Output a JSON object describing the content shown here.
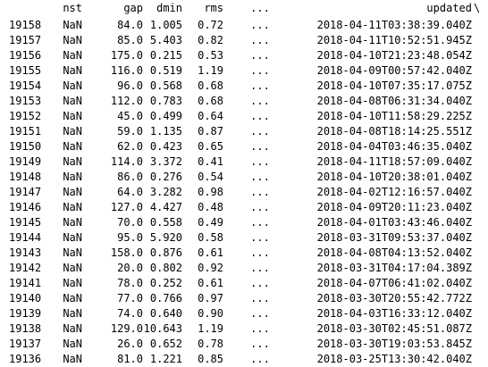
{
  "columns": {
    "nst": "nst",
    "gap": "gap",
    "dmin": "dmin",
    "rms": "rms",
    "ellipsis": "...",
    "updated": "updated",
    "continuation": "\\"
  },
  "rows": [
    {
      "index": "19158",
      "nst": "NaN",
      "gap": "84.0",
      "dmin": "1.005",
      "rms": "0.72",
      "ellipsis": "...",
      "updated": "2018-04-11T03:38:39.040Z"
    },
    {
      "index": "19157",
      "nst": "NaN",
      "gap": "85.0",
      "dmin": "5.403",
      "rms": "0.82",
      "ellipsis": "...",
      "updated": "2018-04-11T10:52:51.945Z"
    },
    {
      "index": "19156",
      "nst": "NaN",
      "gap": "175.0",
      "dmin": "0.215",
      "rms": "0.53",
      "ellipsis": "...",
      "updated": "2018-04-10T21:23:48.054Z"
    },
    {
      "index": "19155",
      "nst": "NaN",
      "gap": "116.0",
      "dmin": "0.519",
      "rms": "1.19",
      "ellipsis": "...",
      "updated": "2018-04-09T00:57:42.040Z"
    },
    {
      "index": "19154",
      "nst": "NaN",
      "gap": "96.0",
      "dmin": "0.568",
      "rms": "0.68",
      "ellipsis": "...",
      "updated": "2018-04-10T07:35:17.075Z"
    },
    {
      "index": "19153",
      "nst": "NaN",
      "gap": "112.0",
      "dmin": "0.783",
      "rms": "0.68",
      "ellipsis": "...",
      "updated": "2018-04-08T06:31:34.040Z"
    },
    {
      "index": "19152",
      "nst": "NaN",
      "gap": "45.0",
      "dmin": "0.499",
      "rms": "0.64",
      "ellipsis": "...",
      "updated": "2018-04-10T11:58:29.225Z"
    },
    {
      "index": "19151",
      "nst": "NaN",
      "gap": "59.0",
      "dmin": "1.135",
      "rms": "0.87",
      "ellipsis": "...",
      "updated": "2018-04-08T18:14:25.551Z"
    },
    {
      "index": "19150",
      "nst": "NaN",
      "gap": "62.0",
      "dmin": "0.423",
      "rms": "0.65",
      "ellipsis": "...",
      "updated": "2018-04-04T03:46:35.040Z"
    },
    {
      "index": "19149",
      "nst": "NaN",
      "gap": "114.0",
      "dmin": "3.372",
      "rms": "0.41",
      "ellipsis": "...",
      "updated": "2018-04-11T18:57:09.040Z"
    },
    {
      "index": "19148",
      "nst": "NaN",
      "gap": "86.0",
      "dmin": "0.276",
      "rms": "0.54",
      "ellipsis": "...",
      "updated": "2018-04-10T20:38:01.040Z"
    },
    {
      "index": "19147",
      "nst": "NaN",
      "gap": "64.0",
      "dmin": "3.282",
      "rms": "0.98",
      "ellipsis": "...",
      "updated": "2018-04-02T12:16:57.040Z"
    },
    {
      "index": "19146",
      "nst": "NaN",
      "gap": "127.0",
      "dmin": "4.427",
      "rms": "0.48",
      "ellipsis": "...",
      "updated": "2018-04-09T20:11:23.040Z"
    },
    {
      "index": "19145",
      "nst": "NaN",
      "gap": "70.0",
      "dmin": "0.558",
      "rms": "0.49",
      "ellipsis": "...",
      "updated": "2018-04-01T03:43:46.040Z"
    },
    {
      "index": "19144",
      "nst": "NaN",
      "gap": "95.0",
      "dmin": "5.920",
      "rms": "0.58",
      "ellipsis": "...",
      "updated": "2018-03-31T09:53:37.040Z"
    },
    {
      "index": "19143",
      "nst": "NaN",
      "gap": "158.0",
      "dmin": "0.876",
      "rms": "0.61",
      "ellipsis": "...",
      "updated": "2018-04-08T04:13:52.040Z"
    },
    {
      "index": "19142",
      "nst": "NaN",
      "gap": "20.0",
      "dmin": "0.802",
      "rms": "0.92",
      "ellipsis": "...",
      "updated": "2018-03-31T04:17:04.389Z"
    },
    {
      "index": "19141",
      "nst": "NaN",
      "gap": "78.0",
      "dmin": "0.252",
      "rms": "0.61",
      "ellipsis": "...",
      "updated": "2018-04-07T06:41:02.040Z"
    },
    {
      "index": "19140",
      "nst": "NaN",
      "gap": "77.0",
      "dmin": "0.766",
      "rms": "0.97",
      "ellipsis": "...",
      "updated": "2018-03-30T20:55:42.772Z"
    },
    {
      "index": "19139",
      "nst": "NaN",
      "gap": "74.0",
      "dmin": "0.640",
      "rms": "0.90",
      "ellipsis": "...",
      "updated": "2018-04-03T16:33:12.040Z"
    },
    {
      "index": "19138",
      "nst": "NaN",
      "gap": "129.0",
      "dmin": "10.643",
      "rms": "1.19",
      "ellipsis": "...",
      "updated": "2018-03-30T02:45:51.087Z"
    },
    {
      "index": "19137",
      "nst": "NaN",
      "gap": "26.0",
      "dmin": "0.652",
      "rms": "0.78",
      "ellipsis": "...",
      "updated": "2018-03-30T19:03:53.845Z"
    },
    {
      "index": "19136",
      "nst": "NaN",
      "gap": "81.0",
      "dmin": "1.221",
      "rms": "0.85",
      "ellipsis": "...",
      "updated": "2018-03-25T13:30:42.040Z"
    }
  ]
}
